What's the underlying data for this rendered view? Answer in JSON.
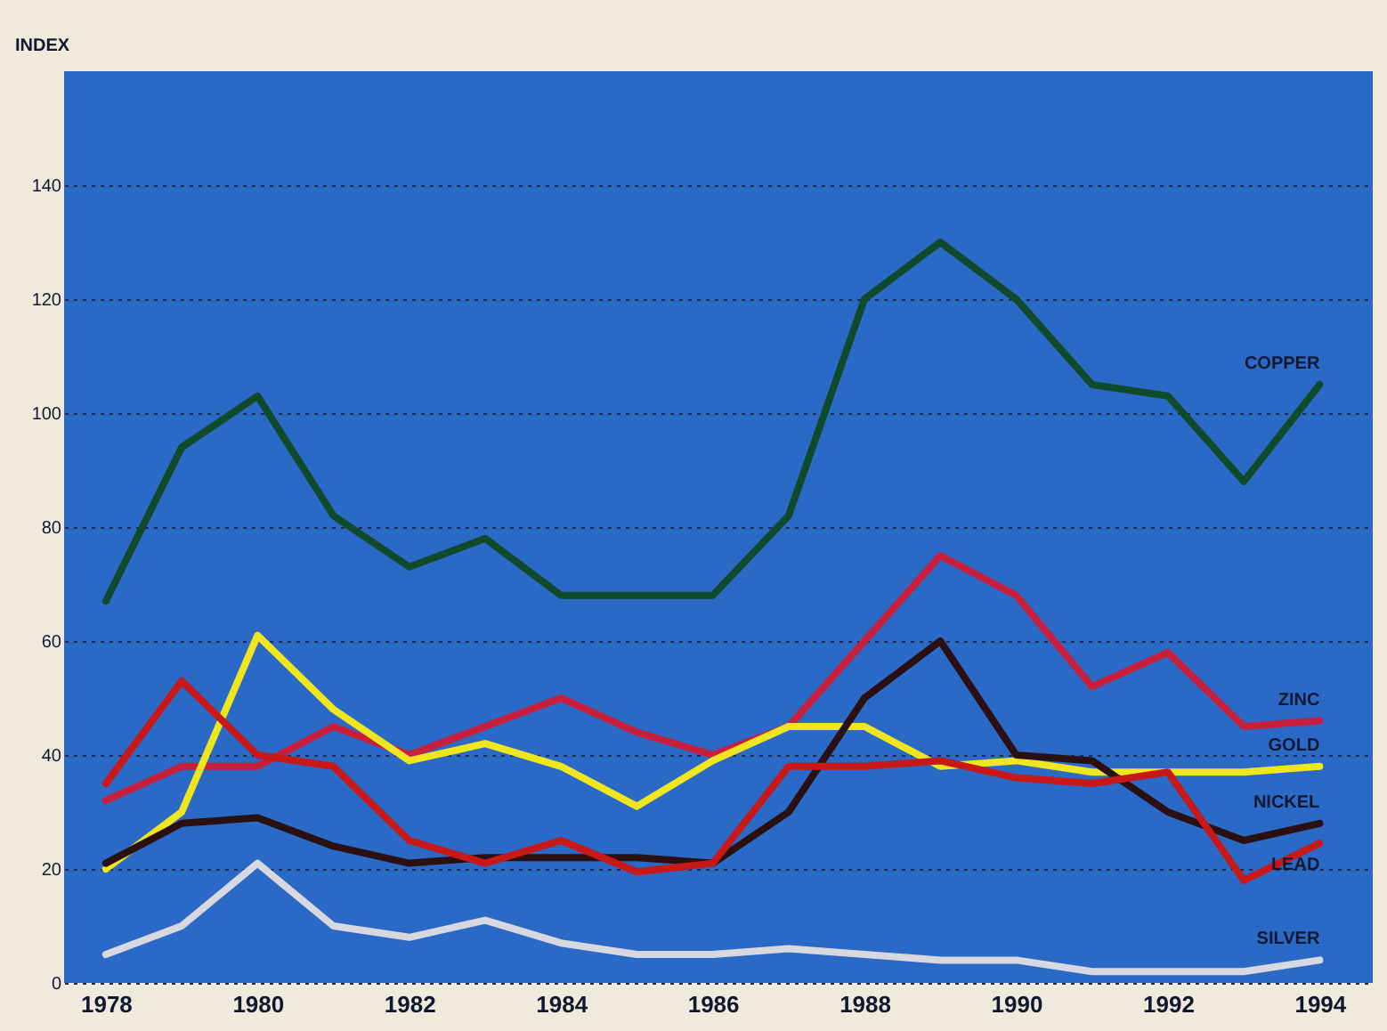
{
  "chart_data": {
    "type": "line",
    "ylabel": "INDEX",
    "x": [
      1978,
      1979,
      1980,
      1981,
      1982,
      1983,
      1984,
      1985,
      1986,
      1987,
      1988,
      1989,
      1990,
      1991,
      1992,
      1993,
      1994
    ],
    "xlim": [
      1977.45,
      1994.7
    ],
    "xticks": [
      1978,
      1980,
      1982,
      1984,
      1986,
      1988,
      1990,
      1992,
      1994
    ],
    "ylim": [
      0,
      160
    ],
    "yticks": [
      0,
      20,
      40,
      60,
      80,
      100,
      120,
      140
    ],
    "grid": "y",
    "legend": false,
    "marker": "none",
    "line_style": "solid",
    "series": [
      {
        "name": "COPPER",
        "color": "#0f4a2a",
        "values": [
          67,
          94,
          103,
          82,
          73,
          78,
          68,
          68,
          68,
          82,
          120,
          130,
          120,
          105,
          103,
          88,
          105
        ]
      },
      {
        "name": "ZINC",
        "color": "#c8203c",
        "values": [
          32,
          38,
          38,
          45,
          40,
          45,
          50,
          44,
          40,
          45,
          60,
          75,
          68,
          52,
          58,
          45,
          46
        ]
      },
      {
        "name": "GOLD",
        "color": "#f0e61e",
        "values": [
          20,
          30,
          61,
          48,
          39,
          42,
          38,
          31,
          39,
          45,
          45,
          38,
          39,
          37,
          37,
          37,
          38
        ]
      },
      {
        "name": "NICKEL",
        "color": "#2a1010",
        "values": [
          21,
          28,
          29,
          24,
          21,
          22,
          22,
          22,
          21,
          30,
          50,
          60,
          40,
          39,
          30,
          25,
          28
        ]
      },
      {
        "name": "LEAD",
        "color": "#c81818",
        "values": [
          35,
          53,
          40,
          38,
          25,
          21,
          25,
          19.5,
          21,
          38,
          38,
          39,
          36,
          35,
          37,
          18,
          24.5
        ]
      },
      {
        "name": "SILVER",
        "color": "#d8d8e0",
        "values": [
          5,
          10,
          21,
          10,
          8,
          11,
          7,
          5,
          5,
          6,
          5,
          4,
          4,
          2,
          2,
          2,
          4
        ]
      }
    ]
  }
}
